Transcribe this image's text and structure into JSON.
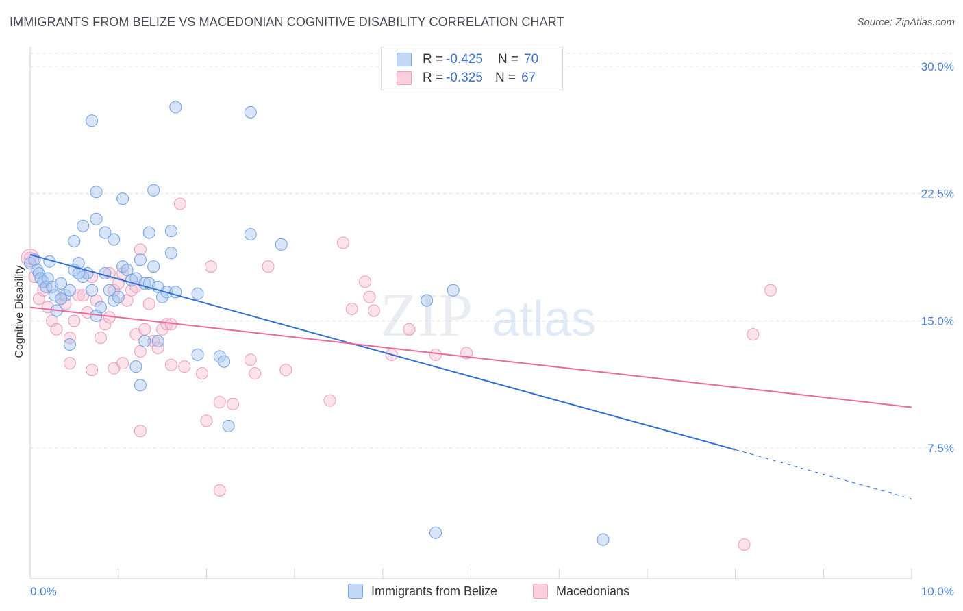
{
  "title": "IMMIGRANTS FROM BELIZE VS MACEDONIAN COGNITIVE DISABILITY CORRELATION CHART",
  "source": "Source: ZipAtlas.com",
  "watermark": {
    "zip": "ZIP",
    "atlas": "atlas"
  },
  "legend": {
    "rows": [
      {
        "r_label": "R =",
        "r_value": "-0.425",
        "n_label": "N =",
        "n_value": "70",
        "color": "#7aa7e6"
      },
      {
        "r_label": "R =",
        "r_value": "-0.325",
        "n_label": "N =",
        "n_value": "67",
        "color": "#f0a0bb"
      }
    ]
  },
  "bottom_legend": [
    {
      "label": "Immigrants from Belize",
      "color": "#7aa7e6"
    },
    {
      "label": "Macedonians",
      "color": "#f0a0bb"
    }
  ],
  "colors": {
    "blue": "#3f78d6",
    "pink": "#e8699a",
    "blue_fill": "#a9c6ef",
    "pink_fill": "#f6bfd2",
    "tick": "#4a7fd0"
  },
  "chart_data": {
    "type": "scatter",
    "title": "IMMIGRANTS FROM BELIZE VS MACEDONIAN COGNITIVE DISABILITY CORRELATION CHART",
    "xlabel": "",
    "ylabel": "Cognitive Disability",
    "xlim": [
      0,
      10
    ],
    "ylim": [
      0,
      30
    ],
    "x_ticks": [
      "0.0%",
      "10.0%"
    ],
    "y_ticks": [
      {
        "value": 7.5,
        "label": "7.5%"
      },
      {
        "value": 15.0,
        "label": "15.0%"
      },
      {
        "value": 22.5,
        "label": "22.5%"
      },
      {
        "value": 30.0,
        "label": "30.0%"
      }
    ],
    "grid": true,
    "legend_position": "top-center",
    "series": [
      {
        "name": "Immigrants from Belize",
        "r": -0.425,
        "n": 70,
        "trend": {
          "x": [
            0.0,
            8.0
          ],
          "y": [
            18.9,
            7.4
          ],
          "dashed_to": [
            10.0,
            4.5
          ]
        },
        "points": [
          [
            0.0,
            18.4
          ],
          [
            0.05,
            18.6
          ],
          [
            0.08,
            18.0
          ],
          [
            0.1,
            17.8
          ],
          [
            0.12,
            17.5
          ],
          [
            0.15,
            17.3
          ],
          [
            0.18,
            17.0
          ],
          [
            0.2,
            17.5
          ],
          [
            0.22,
            18.5
          ],
          [
            0.25,
            17.0
          ],
          [
            0.28,
            16.5
          ],
          [
            0.3,
            15.6
          ],
          [
            0.35,
            17.2
          ],
          [
            0.4,
            16.5
          ],
          [
            0.45,
            16.8
          ],
          [
            0.5,
            18.0
          ],
          [
            0.55,
            18.4
          ],
          [
            0.6,
            17.6
          ],
          [
            0.65,
            17.8
          ],
          [
            0.7,
            16.8
          ],
          [
            0.75,
            15.3
          ],
          [
            0.8,
            15.8
          ],
          [
            0.85,
            17.8
          ],
          [
            0.9,
            16.8
          ],
          [
            0.95,
            16.2
          ],
          [
            1.0,
            16.4
          ],
          [
            1.05,
            18.2
          ],
          [
            1.1,
            18.0
          ],
          [
            1.15,
            17.4
          ],
          [
            1.2,
            17.5
          ],
          [
            1.25,
            18.6
          ],
          [
            1.3,
            17.2
          ],
          [
            1.35,
            17.2
          ],
          [
            1.4,
            18.2
          ],
          [
            1.45,
            17.0
          ],
          [
            1.5,
            16.4
          ],
          [
            1.55,
            16.7
          ],
          [
            1.6,
            19.0
          ],
          [
            1.65,
            16.7
          ],
          [
            0.45,
            13.6
          ],
          [
            0.6,
            20.6
          ],
          [
            0.75,
            21.0
          ],
          [
            0.5,
            19.7
          ],
          [
            0.85,
            20.2
          ],
          [
            0.95,
            19.8
          ],
          [
            1.05,
            22.2
          ],
          [
            0.75,
            22.6
          ],
          [
            0.7,
            26.8
          ],
          [
            1.4,
            22.7
          ],
          [
            1.35,
            20.2
          ],
          [
            1.6,
            20.3
          ],
          [
            1.65,
            27.6
          ],
          [
            2.5,
            27.3
          ],
          [
            2.5,
            20.1
          ],
          [
            2.85,
            19.5
          ],
          [
            1.3,
            13.8
          ],
          [
            1.45,
            13.8
          ],
          [
            1.2,
            12.3
          ],
          [
            1.25,
            11.2
          ],
          [
            1.9,
            13.0
          ],
          [
            2.15,
            12.9
          ],
          [
            2.2,
            12.6
          ],
          [
            2.25,
            8.8
          ],
          [
            1.9,
            16.6
          ],
          [
            4.5,
            16.2
          ],
          [
            4.8,
            16.8
          ],
          [
            4.6,
            2.5
          ],
          [
            6.5,
            2.1
          ],
          [
            0.55,
            17.8
          ],
          [
            0.35,
            16.3
          ]
        ]
      },
      {
        "name": "Macedonians",
        "r": -0.325,
        "n": 67,
        "trend": {
          "x": [
            0.0,
            10.0
          ],
          "y": [
            15.8,
            9.9
          ]
        },
        "points": [
          [
            0.0,
            18.7
          ],
          [
            0.05,
            17.6
          ],
          [
            0.1,
            16.3
          ],
          [
            0.15,
            16.8
          ],
          [
            0.2,
            15.8
          ],
          [
            0.25,
            15.0
          ],
          [
            0.3,
            14.5
          ],
          [
            0.35,
            16.3
          ],
          [
            0.4,
            16.0
          ],
          [
            0.45,
            14.0
          ],
          [
            0.5,
            15.0
          ],
          [
            0.55,
            16.5
          ],
          [
            0.6,
            16.5
          ],
          [
            0.65,
            15.5
          ],
          [
            0.7,
            17.6
          ],
          [
            0.75,
            16.2
          ],
          [
            0.8,
            14.0
          ],
          [
            0.85,
            14.8
          ],
          [
            0.9,
            17.8
          ],
          [
            0.95,
            16.8
          ],
          [
            1.0,
            17.2
          ],
          [
            1.05,
            17.8
          ],
          [
            1.1,
            16.2
          ],
          [
            1.15,
            16.8
          ],
          [
            1.2,
            14.2
          ],
          [
            1.25,
            13.2
          ],
          [
            1.3,
            14.5
          ],
          [
            1.35,
            16.0
          ],
          [
            1.4,
            13.8
          ],
          [
            1.45,
            13.4
          ],
          [
            1.5,
            14.5
          ],
          [
            1.55,
            14.8
          ],
          [
            1.6,
            14.8
          ],
          [
            0.45,
            12.5
          ],
          [
            0.7,
            12.1
          ],
          [
            0.95,
            12.2
          ],
          [
            1.05,
            12.5
          ],
          [
            1.25,
            8.5
          ],
          [
            1.6,
            12.4
          ],
          [
            1.75,
            12.3
          ],
          [
            1.95,
            11.9
          ],
          [
            2.0,
            9.1
          ],
          [
            2.15,
            10.2
          ],
          [
            2.3,
            10.1
          ],
          [
            2.55,
            11.9
          ],
          [
            2.9,
            12.1
          ],
          [
            2.05,
            18.2
          ],
          [
            2.7,
            18.2
          ],
          [
            3.55,
            19.6
          ],
          [
            3.8,
            17.3
          ],
          [
            3.85,
            16.4
          ],
          [
            3.65,
            15.7
          ],
          [
            3.9,
            15.6
          ],
          [
            4.1,
            13.0
          ],
          [
            4.3,
            14.5
          ],
          [
            4.6,
            13.0
          ],
          [
            4.95,
            13.1
          ],
          [
            1.7,
            21.9
          ],
          [
            1.25,
            19.2
          ],
          [
            0.9,
            15.2
          ],
          [
            2.15,
            5.0
          ],
          [
            2.5,
            12.7
          ],
          [
            3.4,
            10.3
          ],
          [
            1.2,
            17.0
          ],
          [
            8.1,
            1.8
          ],
          [
            8.2,
            14.2
          ],
          [
            8.4,
            16.8
          ]
        ]
      }
    ]
  }
}
